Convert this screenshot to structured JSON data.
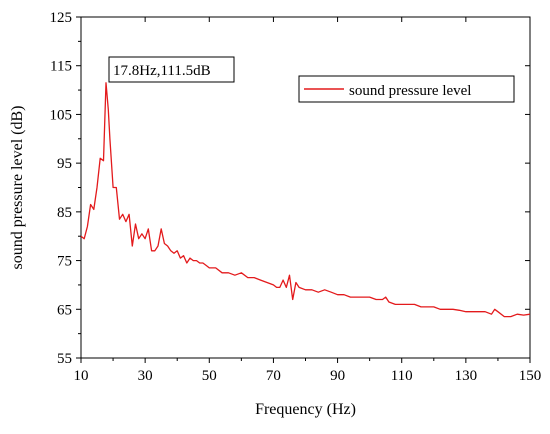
{
  "chart_data": {
    "type": "line",
    "title": "",
    "xlabel": "Frequency (Hz)",
    "ylabel": "sound pressure level (dB)",
    "xlim": [
      10,
      150
    ],
    "ylim": [
      55,
      125
    ],
    "x_ticks": [
      10,
      30,
      50,
      70,
      90,
      110,
      130,
      150
    ],
    "x_tick_labels": [
      "10",
      "30",
      "50",
      "70",
      "90",
      "110",
      "130",
      "150"
    ],
    "y_ticks": [
      55,
      65,
      75,
      85,
      95,
      105,
      115,
      125
    ],
    "y_tick_labels": [
      "55",
      "65",
      "75",
      "85",
      "95",
      "105",
      "115",
      "125"
    ],
    "grid": false,
    "legend": {
      "position": "top-right",
      "entries": [
        "sound pressure level"
      ]
    },
    "annotation": {
      "text": "17.8Hz,111.5dB",
      "x": 17.8,
      "y": 111.5
    },
    "series": [
      {
        "name": "sound pressure level",
        "color": "#e31a1c",
        "x": [
          10,
          11,
          12,
          13,
          14,
          15,
          16,
          17,
          17.8,
          18.5,
          19,
          20,
          21,
          22,
          23,
          24,
          25,
          26,
          27,
          28,
          29,
          30,
          31,
          32,
          33,
          34,
          35,
          36,
          37,
          38,
          39,
          40,
          41,
          42,
          43,
          44,
          45,
          46,
          47,
          48,
          49,
          50,
          52,
          54,
          56,
          58,
          60,
          62,
          64,
          66,
          68,
          70,
          71,
          72,
          73,
          74,
          75,
          76,
          77,
          78,
          80,
          82,
          84,
          86,
          88,
          90,
          92,
          94,
          96,
          98,
          100,
          102,
          104,
          105,
          106,
          108,
          110,
          112,
          114,
          116,
          118,
          120,
          122,
          124,
          126,
          128,
          130,
          132,
          134,
          136,
          138,
          139,
          140,
          142,
          144,
          146,
          148,
          150
        ],
        "values": [
          80,
          79.5,
          82,
          86.5,
          85.5,
          90,
          96,
          95.5,
          111.5,
          106,
          100,
          90,
          90,
          83.5,
          84.5,
          83,
          84.5,
          78,
          82.5,
          79.5,
          80.5,
          79.5,
          81.5,
          77,
          77,
          78,
          81.5,
          78.5,
          78,
          77,
          76.5,
          77,
          75.5,
          76,
          74.5,
          75.5,
          75,
          75,
          74.5,
          74.5,
          74,
          73.5,
          73.5,
          72.5,
          72.5,
          72,
          72.5,
          71.5,
          71.5,
          71,
          70.5,
          70,
          69.5,
          69.5,
          71,
          69.5,
          72,
          67,
          70.5,
          69.5,
          69,
          69,
          68.5,
          69,
          68.5,
          68,
          68,
          67.5,
          67.5,
          67.5,
          67.5,
          67,
          67,
          67.5,
          66.5,
          66,
          66,
          66,
          66,
          65.5,
          65.5,
          65.5,
          65,
          65,
          65,
          64.8,
          64.5,
          64.5,
          64.5,
          64.5,
          64,
          65,
          64.5,
          63.5,
          63.5,
          64,
          63.8,
          64
        ]
      }
    ]
  }
}
